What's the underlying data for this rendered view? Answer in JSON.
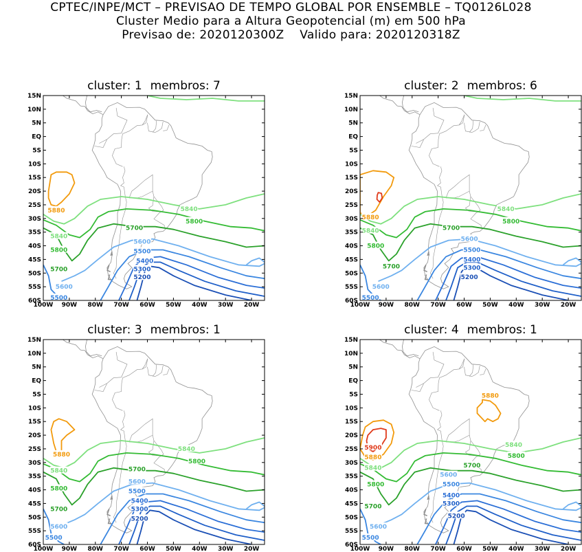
{
  "header": {
    "line1": "CPTEC/INPE/MCT – PREVISAO DE TEMPO GLOBAL POR ENSEMBLE – TQ0126L028",
    "line2": "Cluster Medio para a Altura Geopotencial (m) em 500 hPa",
    "line3": "Previsao de: 2020120300Z    Valido para: 2020120318Z"
  },
  "colors": {
    "5200": "#1a4fb5",
    "5300": "#1f5fc8",
    "5400": "#2a6ed6",
    "5500": "#3a86e0",
    "5600": "#6fb0ef",
    "5700": "#2aa12a",
    "5800": "#33bb33",
    "5840": "#7ee07e",
    "5880": "#f29a0c",
    "5900": "#e03a1a",
    "coast": "#8f8f8f"
  },
  "axes": {
    "x_ticks": [
      "100W",
      "90W",
      "80W",
      "70W",
      "60W",
      "50W",
      "40W",
      "30W",
      "20W"
    ],
    "y_ticks": [
      "15N",
      "10N",
      "5N",
      "EQ",
      "5S",
      "10S",
      "15S",
      "20S",
      "25S",
      "30S",
      "35S",
      "40S",
      "45S",
      "50S",
      "55S",
      "60S"
    ],
    "xlim": [
      -100,
      -15
    ],
    "ylim": [
      -60,
      15
    ]
  },
  "chart_data": [
    {
      "type": "contour",
      "title_prefix": "cluster:",
      "cluster": "1",
      "members_prefix": "membros:",
      "members": "7",
      "contour_labels": [
        "5880",
        "5840",
        "5800",
        "5840",
        "5800",
        "5700",
        "5700",
        "5600",
        "5600",
        "5500",
        "5500",
        "5400",
        "5300",
        "5200"
      ],
      "levels": [
        5200,
        5300,
        5400,
        5500,
        5600,
        5700,
        5800,
        5840,
        5880
      ]
    },
    {
      "type": "contour",
      "title_prefix": "cluster:",
      "cluster": "2",
      "members_prefix": "membros:",
      "members": "6",
      "contour_labels": [
        "5880",
        "5840",
        "5800",
        "5840",
        "5800",
        "5700",
        "5700",
        "5600",
        "5600",
        "5500",
        "5500",
        "5400",
        "5300",
        "5200"
      ],
      "levels": [
        5200,
        5300,
        5400,
        5500,
        5600,
        5700,
        5800,
        5840,
        5880,
        5900
      ]
    },
    {
      "type": "contour",
      "title_prefix": "cluster:",
      "cluster": "3",
      "members_prefix": "membros:",
      "members": "1",
      "contour_labels": [
        "5880",
        "5840",
        "5800",
        "5840",
        "5800",
        "5700",
        "5700",
        "5600",
        "5600",
        "5500",
        "5500",
        "5400",
        "5300",
        "5200"
      ],
      "levels": [
        5200,
        5300,
        5400,
        5500,
        5600,
        5700,
        5800,
        5840,
        5880
      ]
    },
    {
      "type": "contour",
      "title_prefix": "cluster:",
      "cluster": "4",
      "members_prefix": "membros:",
      "members": "1",
      "contour_labels": [
        "5900",
        "5880",
        "5880",
        "5840",
        "5800",
        "5840",
        "5800",
        "5700",
        "5700",
        "5600",
        "5600",
        "5500",
        "5500",
        "5400",
        "5300",
        "5200"
      ],
      "levels": [
        5200,
        5300,
        5400,
        5500,
        5600,
        5700,
        5800,
        5840,
        5880,
        5900
      ]
    }
  ]
}
